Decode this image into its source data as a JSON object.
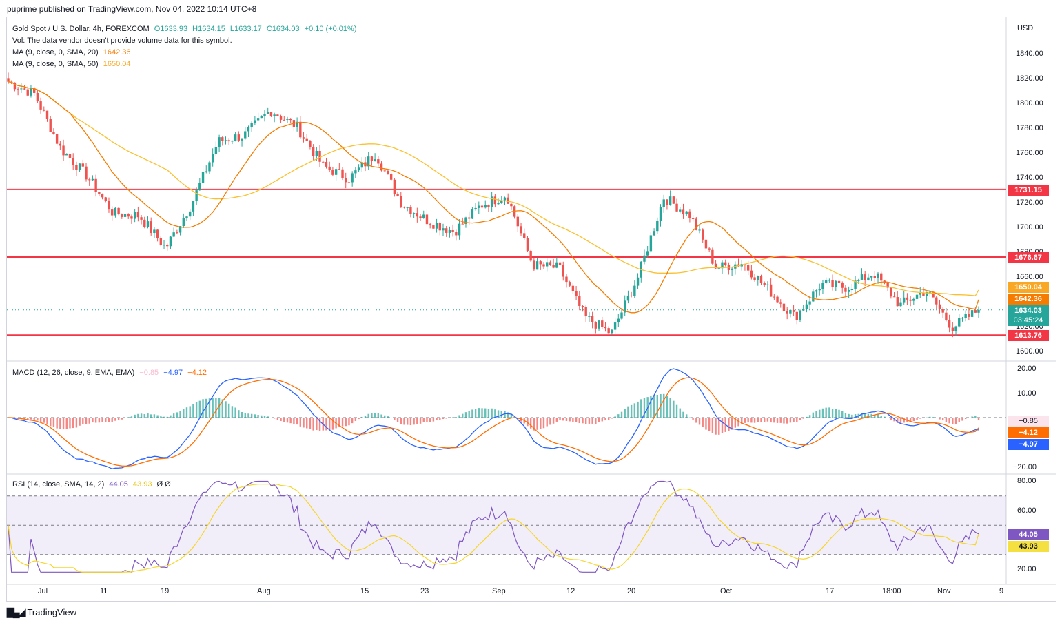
{
  "header": {
    "publisher_line": "puprime published on TradingView.com, Nov 04, 2022 10:14 UTC+8"
  },
  "legend": {
    "symbol": "Gold Spot / U.S. Dollar, 4h, FOREXCOM",
    "ohlc": {
      "o": "O1633.93",
      "h": "H1634.15",
      "l": "L1633.17",
      "c": "C1634.03",
      "chg": "+0.10 (+0.01%)"
    },
    "vol": "Vol: The data vendor doesn't provide volume data for this symbol.",
    "ma20": {
      "label": "MA (9, close, 0, SMA, 20)",
      "value": "1642.36"
    },
    "ma50": {
      "label": "MA (9, close, 0, SMA, 50)",
      "value": "1650.04"
    },
    "macd": {
      "label": "MACD (12, 26, close, 9, EMA, EMA)",
      "hist": "−0.85",
      "macd": "−4.97",
      "signal": "−4.12"
    },
    "rsi": {
      "label": "RSI (14, close, SMA, 14, 2)",
      "rsi": "44.05",
      "sma": "43.93",
      "extra": "Ø Ø"
    }
  },
  "price_axis": {
    "currency": "USD",
    "ticks": [
      "1840.00",
      "1820.00",
      "1800.00",
      "1780.00",
      "1760.00",
      "1740.00",
      "1720.00",
      "1700.00",
      "1680.00",
      "1660.00",
      "1640.00",
      "1620.00",
      "1600.00"
    ]
  },
  "price_tags": {
    "level_1731": "1731.15",
    "level_1676": "1676.67",
    "ma50": "1650.04",
    "ma20": "1642.36",
    "last": "1634.03",
    "countdown": "03:45:24",
    "level_1613": "1613.76"
  },
  "macd_axis": {
    "ticks": [
      "20.00",
      "10.00",
      "−20.00"
    ],
    "tags": {
      "hist": "−0.85",
      "signal": "−4.12",
      "macd": "−4.97"
    }
  },
  "rsi_axis": {
    "ticks": [
      "80.00",
      "60.00",
      "20.00"
    ],
    "tags": {
      "rsi": "44.05",
      "sma": "43.93"
    }
  },
  "time_axis": [
    "Jul",
    "11",
    "19",
    "Aug",
    "15",
    "23",
    "Sep",
    "12",
    "20",
    "Oct",
    "17",
    "18:00",
    "Nov",
    "9"
  ],
  "footer": {
    "brand": "TradingView"
  },
  "colors": {
    "up": "#26a69a",
    "down": "#ef5350",
    "ma20": "#f57c00",
    "ma50": "#fbc02d",
    "level": "#f23645",
    "macd": "#2962ff",
    "signal": "#ff6d00",
    "rsi": "#7e57c2",
    "rsi_sma": "#f5d62a"
  },
  "chart_data": {
    "type": "candlestick",
    "symbol": "Gold Spot / U.S. Dollar",
    "timeframe": "4h",
    "ylim": [
      1600,
      1850
    ],
    "horizontal_levels": [
      1731.15,
      1676.67,
      1613.76
    ],
    "last_price": 1634.03,
    "close_path": [
      {
        "date": "Jun 29",
        "close": 1818
      },
      {
        "date": "Jul 1",
        "close": 1808
      },
      {
        "date": "Jul 6",
        "close": 1764
      },
      {
        "date": "Jul 8",
        "close": 1742
      },
      {
        "date": "Jul 14",
        "close": 1712
      },
      {
        "date": "Jul 18",
        "close": 1710
      },
      {
        "date": "Jul 21",
        "close": 1684
      },
      {
        "date": "Jul 26",
        "close": 1720
      },
      {
        "date": "Aug 1",
        "close": 1770
      },
      {
        "date": "Aug 5",
        "close": 1775
      },
      {
        "date": "Aug 9",
        "close": 1795
      },
      {
        "date": "Aug 15",
        "close": 1782
      },
      {
        "date": "Aug 19",
        "close": 1750
      },
      {
        "date": "Aug 23",
        "close": 1740
      },
      {
        "date": "Aug 26",
        "close": 1760
      },
      {
        "date": "Aug 30",
        "close": 1720
      },
      {
        "date": "Sep 2",
        "close": 1706
      },
      {
        "date": "Sep 6",
        "close": 1697
      },
      {
        "date": "Sep 9",
        "close": 1718
      },
      {
        "date": "Sep 13",
        "close": 1727
      },
      {
        "date": "Sep 16",
        "close": 1670
      },
      {
        "date": "Sep 21",
        "close": 1668
      },
      {
        "date": "Sep 26",
        "close": 1628
      },
      {
        "date": "Sep 28",
        "close": 1615
      },
      {
        "date": "Sep 30",
        "close": 1660
      },
      {
        "date": "Oct 4",
        "close": 1725
      },
      {
        "date": "Oct 7",
        "close": 1710
      },
      {
        "date": "Oct 11",
        "close": 1668
      },
      {
        "date": "Oct 14",
        "close": 1672
      },
      {
        "date": "Oct 17",
        "close": 1650
      },
      {
        "date": "Oct 20",
        "close": 1628
      },
      {
        "date": "Oct 21",
        "close": 1655
      },
      {
        "date": "Oct 25",
        "close": 1652
      },
      {
        "date": "Oct 27",
        "close": 1664
      },
      {
        "date": "Oct 31",
        "close": 1638
      },
      {
        "date": "Nov 2",
        "close": 1650
      },
      {
        "date": "Nov 3",
        "close": 1620
      },
      {
        "date": "Nov 4",
        "close": 1634.03
      }
    ],
    "ma20_last": 1642.36,
    "ma50_last": 1650.04,
    "macd": {
      "macd": -4.97,
      "signal": -4.12,
      "histogram": -0.85,
      "ylim": [
        -22,
        22
      ]
    },
    "rsi": {
      "rsi": 44.05,
      "sma": 43.93,
      "bands": [
        30,
        50,
        70
      ],
      "ylim": [
        15,
        82
      ]
    }
  }
}
